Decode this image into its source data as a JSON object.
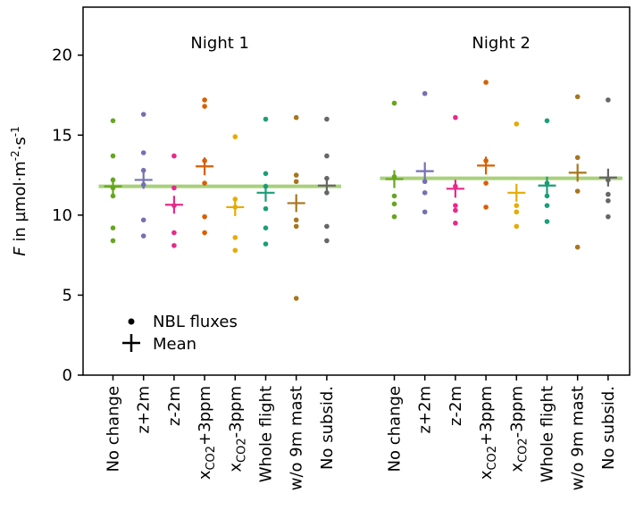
{
  "chart_data": {
    "type": "scatter",
    "ylabel_var": "F",
    "ylabel_rest": " in µmol·m",
    "ylabel_exp1": "-2",
    "ylabel_mid": "·s",
    "ylabel_exp2": "-1",
    "ylim": [
      0,
      23
    ],
    "yticks": [
      "0",
      "5",
      "10",
      "15",
      "20"
    ],
    "grid": false,
    "legend_placement": "lower-left",
    "legend": {
      "points_label": "NBL fluxes",
      "mean_label": "Mean"
    },
    "reference_color": "#a8d07a",
    "category_labels": [
      {
        "text": "No change"
      },
      {
        "text": "z+2m"
      },
      {
        "text": "z-2m"
      },
      {
        "prefix": "x",
        "sub": "CO2",
        "suffix": "+3ppm"
      },
      {
        "prefix": "x",
        "sub": "CO2",
        "suffix": "-3ppm"
      },
      {
        "text": "Whole flight"
      },
      {
        "text": "w/o 9m mast"
      },
      {
        "text": "No subsid."
      }
    ],
    "colors": [
      "#66a61e",
      "#7570b3",
      "#e7298a",
      "#d95f02",
      "#e6ab02",
      "#1b9e77",
      "#a6761d",
      "#666666"
    ],
    "panels": [
      {
        "title": "Night 1",
        "reference_mean": 11.8,
        "series": [
          {
            "values": [
              15.9,
              13.7,
              12.2,
              11.7,
              11.2,
              9.2,
              8.4
            ],
            "mean": 11.8
          },
          {
            "values": [
              16.3,
              13.9,
              12.8,
              11.9,
              9.7,
              8.7
            ],
            "mean": 12.2
          },
          {
            "values": [
              13.7,
              11.7,
              10.6,
              8.9,
              8.1
            ],
            "mean": 10.65
          },
          {
            "values": [
              17.2,
              16.8,
              13.4,
              12.0,
              9.9,
              8.9
            ],
            "mean": 13.05
          },
          {
            "values": [
              14.9,
              11.0,
              10.5,
              8.6,
              7.8
            ],
            "mean": 10.5
          },
          {
            "values": [
              16.0,
              12.6,
              11.8,
              10.4,
              9.2,
              8.2
            ],
            "mean": 11.4
          },
          {
            "values": [
              16.1,
              12.5,
              12.1,
              9.7,
              9.3,
              4.8
            ],
            "mean": 10.75
          },
          {
            "values": [
              16.0,
              13.7,
              12.3,
              11.4,
              9.3,
              8.4
            ],
            "mean": 11.85
          }
        ]
      },
      {
        "title": "Night 2",
        "reference_mean": 12.3,
        "series": [
          {
            "values": [
              17.0,
              12.4,
              11.2,
              10.7,
              9.9
            ],
            "mean": 12.25
          },
          {
            "values": [
              17.6,
              12.1,
              11.4,
              10.2
            ],
            "mean": 12.75
          },
          {
            "values": [
              16.1,
              11.8,
              10.6,
              10.3,
              9.5
            ],
            "mean": 11.65
          },
          {
            "values": [
              18.3,
              13.4,
              12.0,
              10.5
            ],
            "mean": 13.1
          },
          {
            "values": [
              15.7,
              10.6,
              10.2,
              9.3
            ],
            "mean": 11.4
          },
          {
            "values": [
              15.9,
              12.0,
              11.2,
              10.6,
              9.6
            ],
            "mean": 11.85
          },
          {
            "values": [
              17.4,
              13.6,
              11.5,
              8.0
            ],
            "mean": 12.65
          },
          {
            "values": [
              17.2,
              12.2,
              11.3,
              10.9,
              9.9
            ],
            "mean": 12.35
          }
        ]
      }
    ]
  }
}
